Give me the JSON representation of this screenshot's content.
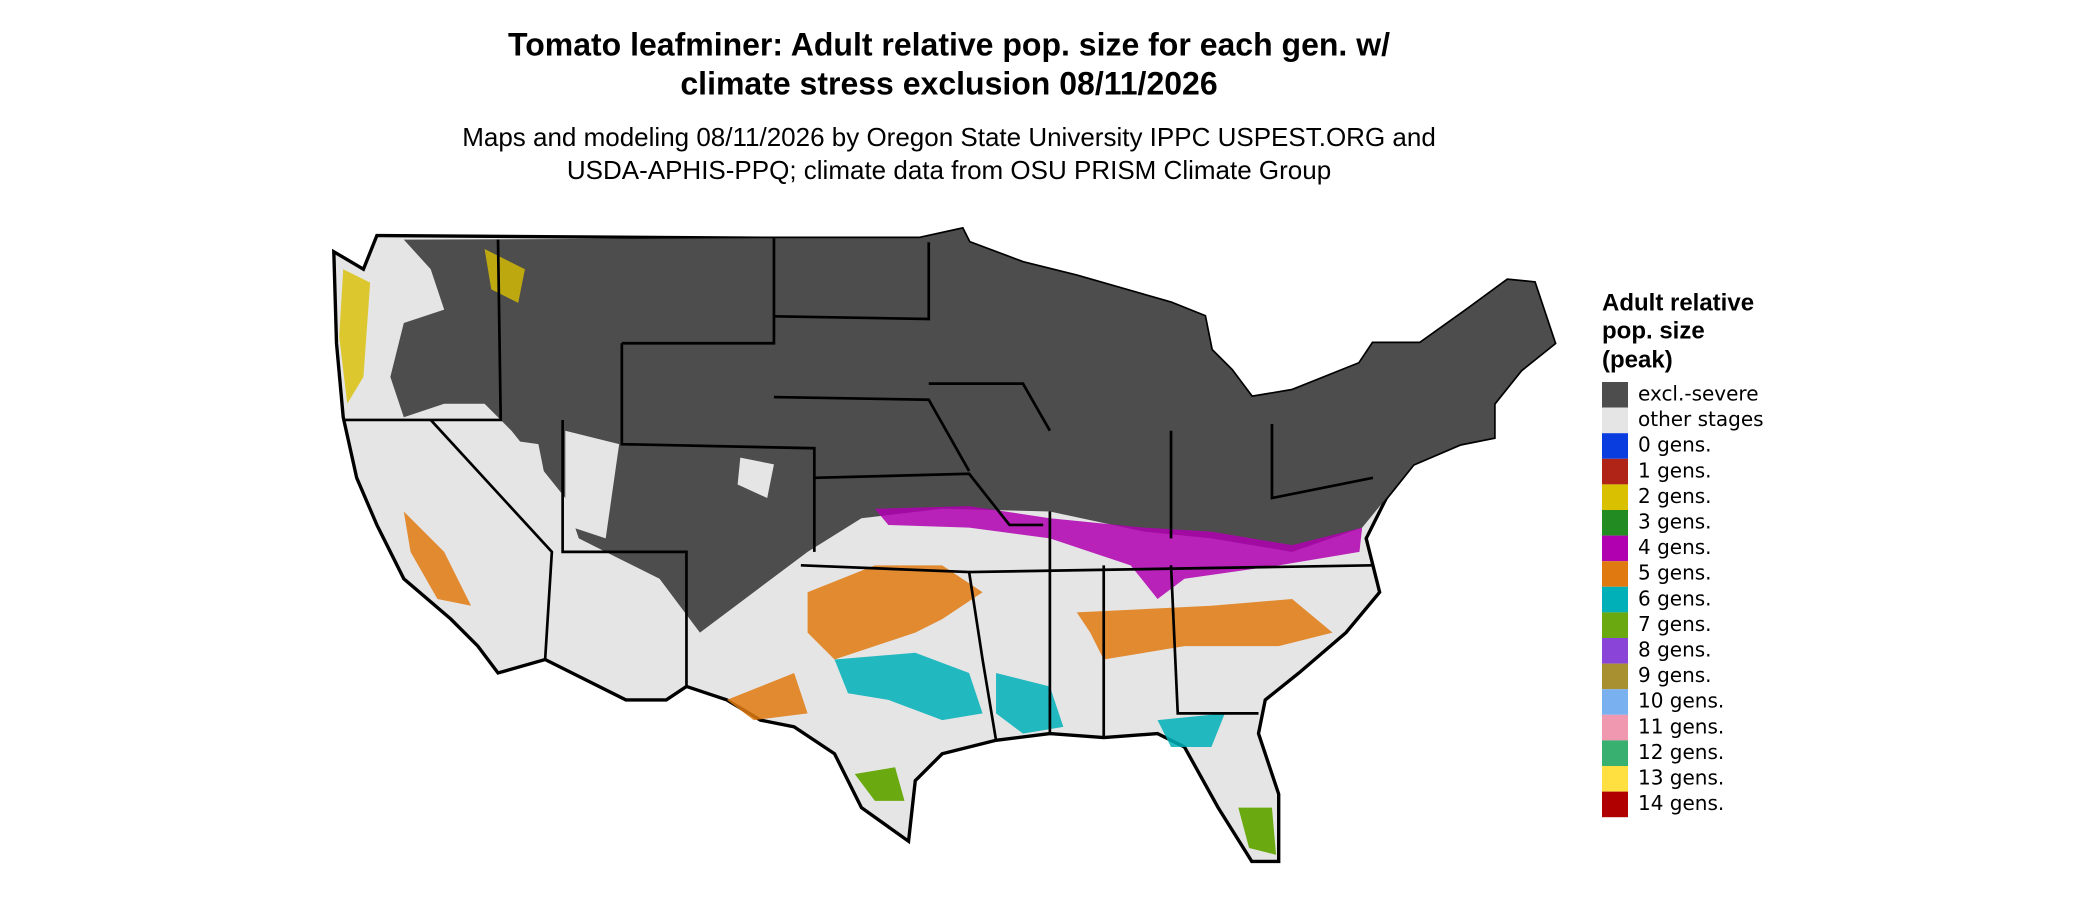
{
  "map": {
    "title_lines": [
      "Tomato leafminer: Adult relative pop. size for each gen. w/",
      "climate stress exclusion 08/11/2026"
    ],
    "subtitle_lines": [
      "Maps and modeling 08/11/2026 by Oregon State University IPPC USPEST.ORG and",
      "USDA-APHIS-PPQ; climate data from OSU PRISM Climate Group"
    ],
    "legend": {
      "title_lines": [
        "Adult relative",
        "pop. size",
        "(peak)"
      ],
      "items": [
        {
          "label": "excl.-severe",
          "color": "#4d4d4d"
        },
        {
          "label": "other stages",
          "color": "#e5e5e5"
        },
        {
          "label": "0 gens.",
          "color": "#0a3de0"
        },
        {
          "label": "1 gens.",
          "color": "#b02418"
        },
        {
          "label": "2 gens.",
          "color": "#d9c000"
        },
        {
          "label": "3 gens.",
          "color": "#228b22"
        },
        {
          "label": "4 gens.",
          "color": "#b000b0"
        },
        {
          "label": "5 gens.",
          "color": "#e07a10"
        },
        {
          "label": "6 gens.",
          "color": "#00b0b8"
        },
        {
          "label": "7 gens.",
          "color": "#6aaa10"
        },
        {
          "label": "8 gens.",
          "color": "#8a44d8"
        },
        {
          "label": "9 gens.",
          "color": "#a89030"
        },
        {
          "label": "10 gens.",
          "color": "#78b0f0"
        },
        {
          "label": "11 gens.",
          "color": "#f098b0"
        },
        {
          "label": "12 gens.",
          "color": "#38b070"
        },
        {
          "label": "13 gens.",
          "color": "#ffe040"
        },
        {
          "label": "14 gens.",
          "color": "#b00000"
        }
      ]
    }
  }
}
